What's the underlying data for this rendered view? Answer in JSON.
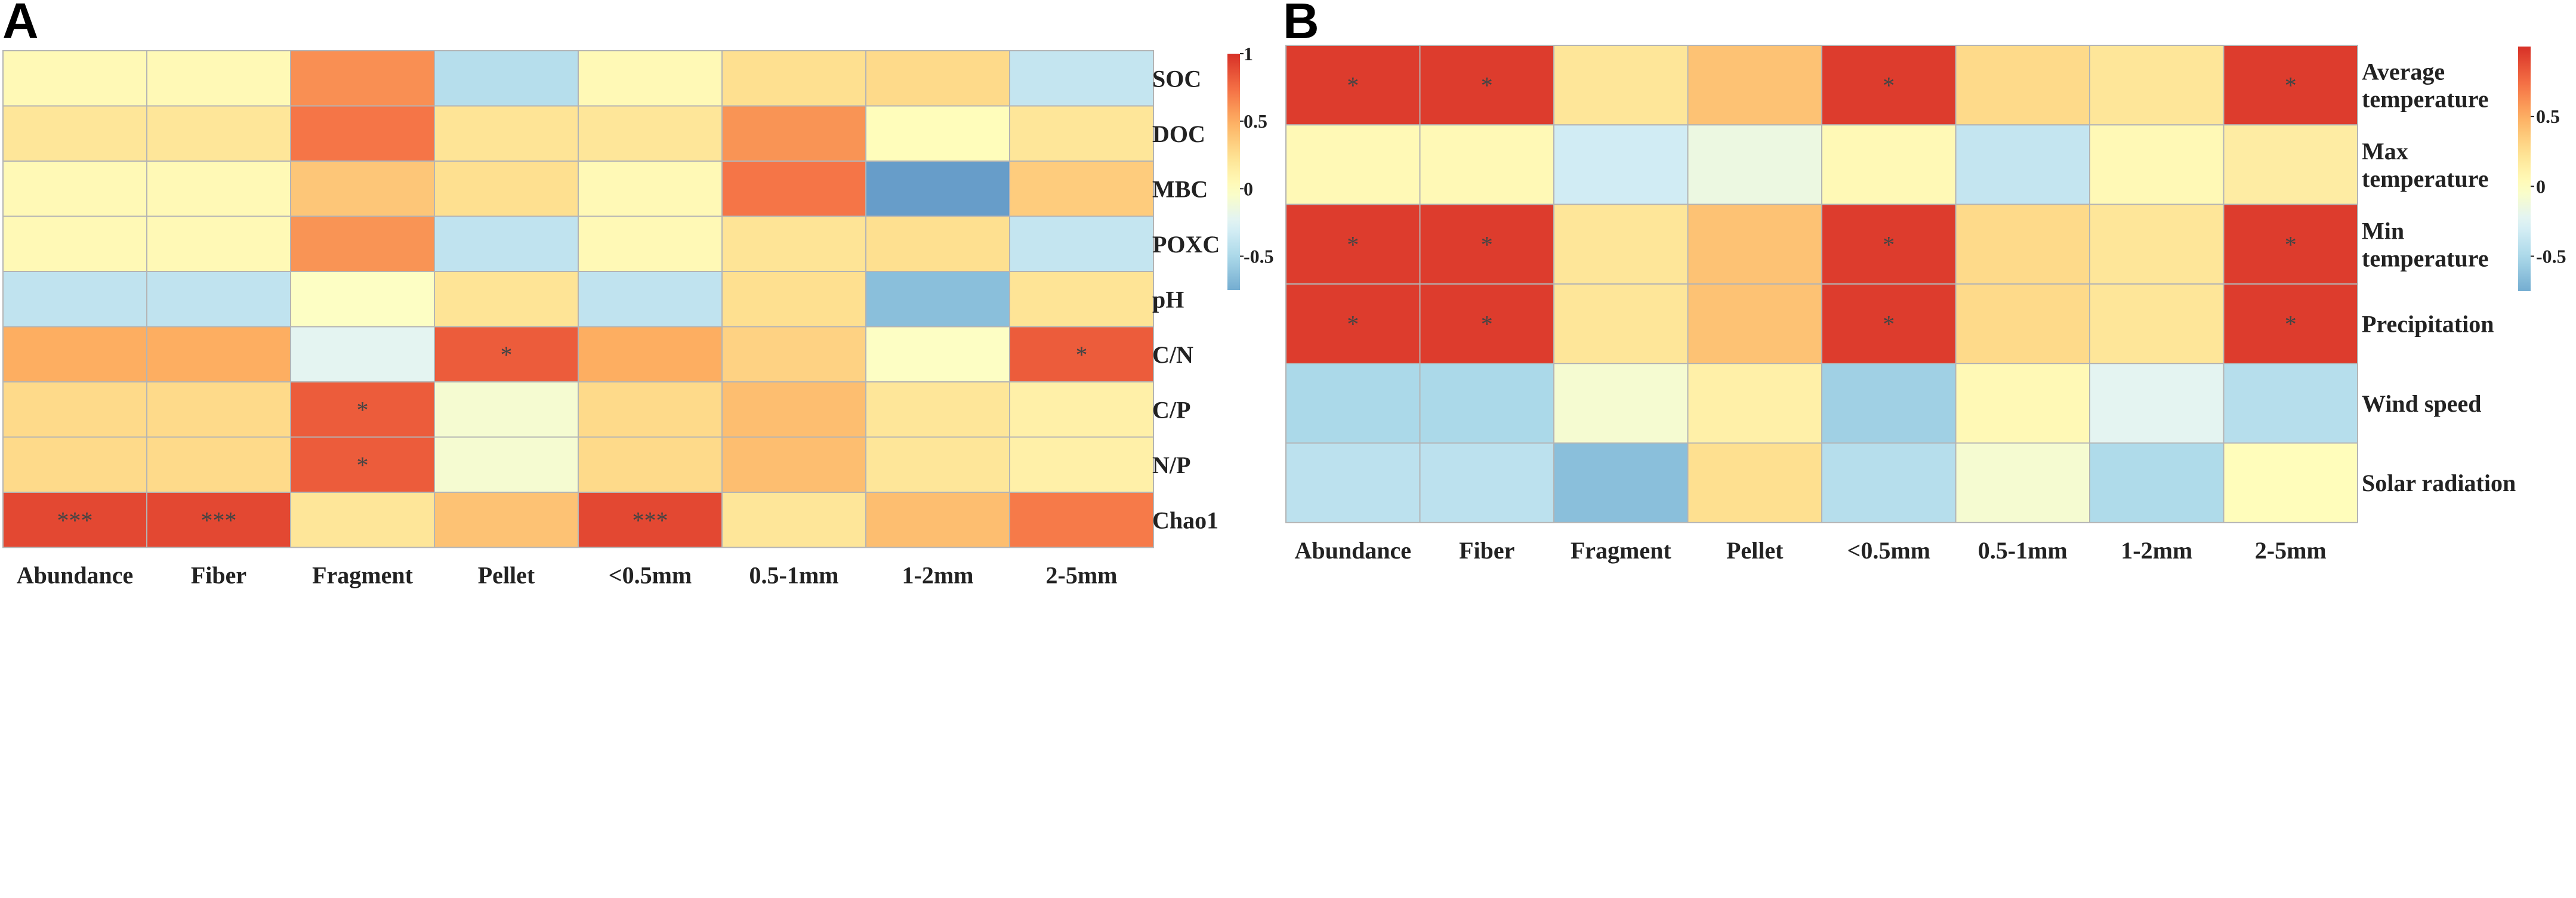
{
  "chart_data": [
    {
      "type": "heatmap",
      "panel": "A",
      "columns": [
        "Abundance",
        "Fiber",
        "Fragment",
        "Pellet",
        "<0.5mm",
        "0.5-1mm",
        "1-2mm",
        "2-5mm"
      ],
      "rows": [
        "SOC",
        "DOC",
        "MBC",
        "POXC",
        "pH",
        "C/N",
        "C/P",
        "N/P",
        "Chao1"
      ],
      "values": [
        [
          0.05,
          0.05,
          0.62,
          -0.45,
          0.05,
          0.25,
          0.28,
          -0.38
        ],
        [
          0.2,
          0.2,
          0.72,
          0.22,
          0.2,
          0.6,
          0.02,
          0.2
        ],
        [
          0.05,
          0.05,
          0.38,
          0.25,
          0.05,
          0.72,
          -0.82,
          0.35
        ],
        [
          0.05,
          0.05,
          0.6,
          -0.4,
          0.05,
          0.22,
          0.25,
          -0.38
        ],
        [
          -0.4,
          -0.4,
          -0.02,
          0.22,
          -0.4,
          0.25,
          -0.65,
          0.22
        ],
        [
          0.5,
          0.5,
          -0.22,
          0.82,
          0.5,
          0.32,
          -0.02,
          0.82
        ],
        [
          0.28,
          0.28,
          0.82,
          -0.08,
          0.28,
          0.42,
          0.2,
          0.12
        ],
        [
          0.28,
          0.28,
          0.82,
          -0.08,
          0.28,
          0.42,
          0.2,
          0.12
        ],
        [
          0.9,
          0.9,
          0.2,
          0.4,
          0.9,
          0.2,
          0.42,
          0.7
        ]
      ],
      "annotations": [
        [
          "",
          "",
          "",
          "",
          "",
          "",
          "",
          ""
        ],
        [
          "",
          "",
          "",
          "",
          "",
          "",
          "",
          ""
        ],
        [
          "",
          "",
          "",
          "",
          "",
          "",
          "",
          ""
        ],
        [
          "",
          "",
          "",
          "",
          "",
          "",
          "",
          ""
        ],
        [
          "",
          "",
          "",
          "",
          "",
          "",
          "",
          ""
        ],
        [
          "",
          "",
          "",
          "*",
          "",
          "",
          "",
          "*"
        ],
        [
          "",
          "",
          "*",
          "",
          "",
          "",
          "",
          ""
        ],
        [
          "",
          "",
          "*",
          "",
          "",
          "",
          "",
          ""
        ],
        [
          "***",
          "***",
          "",
          "",
          "***",
          "",
          "",
          ""
        ]
      ],
      "colorbar": {
        "min": -0.75,
        "max": 1,
        "ticks": [
          1,
          0.5,
          0,
          -0.5
        ],
        "tick_labels": [
          "1",
          "0.5",
          "0",
          "-0.5"
        ]
      }
    },
    {
      "type": "heatmap",
      "panel": "B",
      "columns": [
        "Abundance",
        "Fiber",
        "Fragment",
        "Pellet",
        "<0.5mm",
        "0.5-1mm",
        "1-2mm",
        "2-5mm"
      ],
      "rows": [
        [
          "Average",
          "temperature"
        ],
        [
          "Max",
          "temperature"
        ],
        [
          "Min",
          "temperature"
        ],
        [
          "Precipitation"
        ],
        [
          "Wind speed"
        ],
        [
          "Solar radiation"
        ]
      ],
      "values": [
        [
          0.95,
          0.95,
          0.2,
          0.4,
          0.95,
          0.28,
          0.2,
          0.95
        ],
        [
          0.05,
          0.05,
          -0.32,
          -0.15,
          0.05,
          -0.38,
          0.05,
          0.15
        ],
        [
          0.95,
          0.95,
          0.2,
          0.4,
          0.95,
          0.28,
          0.2,
          0.95
        ],
        [
          0.95,
          0.95,
          0.2,
          0.4,
          0.95,
          0.28,
          0.2,
          0.95
        ],
        [
          -0.5,
          -0.5,
          -0.08,
          0.12,
          -0.55,
          0.05,
          -0.22,
          -0.45
        ],
        [
          -0.42,
          -0.42,
          -0.65,
          0.25,
          -0.45,
          -0.08,
          -0.48,
          0.02
        ]
      ],
      "annotations": [
        [
          "*",
          "*",
          "",
          "",
          "*",
          "",
          "",
          "*"
        ],
        [
          "",
          "",
          "",
          "",
          "",
          "",
          "",
          ""
        ],
        [
          "*",
          "*",
          "",
          "",
          "*",
          "",
          "",
          "*"
        ],
        [
          "*",
          "*",
          "",
          "",
          "*",
          "",
          "",
          "*"
        ],
        [
          "",
          "",
          "",
          "",
          "",
          "",
          "",
          ""
        ],
        [
          "",
          "",
          "",
          "",
          "",
          "",
          "",
          ""
        ]
      ],
      "colorbar": {
        "min": -0.75,
        "max": 1,
        "ticks": [
          0.5,
          0,
          -0.5
        ],
        "tick_labels": [
          "0.5",
          "0",
          "-0.5"
        ]
      }
    }
  ],
  "colors": [
    "#4575b4",
    "#74add1",
    "#abd9e9",
    "#e0f3f8",
    "#ffffbf",
    "#fee090",
    "#fdae61",
    "#f46d43",
    "#d73027"
  ],
  "labels": {
    "panel_a": "A",
    "panel_b": "B"
  }
}
